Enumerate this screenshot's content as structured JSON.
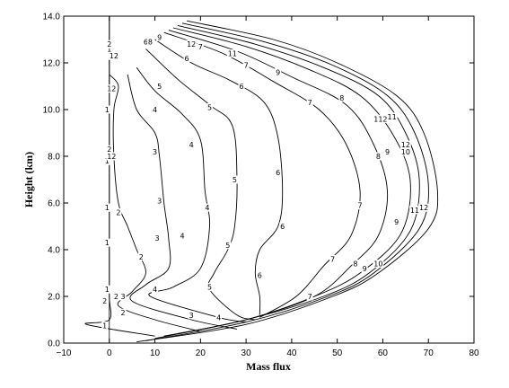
{
  "chart_data": {
    "type": "line",
    "title": "",
    "xlabel": "Mass flux",
    "ylabel": "Height (km)",
    "xlim": [
      -10,
      80
    ],
    "ylim": [
      0,
      14
    ],
    "x_ticks": [
      -10,
      0,
      10,
      20,
      30,
      40,
      50,
      60,
      70,
      80
    ],
    "x_tick_labels": [
      "−10",
      "0",
      "10",
      "20",
      "30",
      "40",
      "50",
      "60",
      "70",
      "80"
    ],
    "y_ticks": [
      0,
      2,
      4,
      6,
      8,
      10,
      12,
      14
    ],
    "y_tick_labels": [
      "0.0",
      "2.0",
      "4.0",
      "6.0",
      "8.0",
      "10.0",
      "12.0",
      "14.0"
    ],
    "grid": false,
    "legend": "none",
    "line_color": "#000000",
    "series": [
      {
        "name": "1",
        "points": [
          [
            0,
            14
          ],
          [
            0,
            12
          ],
          [
            0,
            10
          ],
          [
            0,
            8
          ],
          [
            0,
            6
          ],
          [
            0,
            4
          ],
          [
            0,
            2
          ],
          [
            0,
            1.0
          ],
          [
            -5,
            0.8
          ],
          [
            10,
            0.3
          ]
        ]
      },
      {
        "name": "2",
        "points": [
          [
            0,
            11.5
          ],
          [
            2,
            11
          ],
          [
            1,
            10
          ],
          [
            1,
            8
          ],
          [
            2,
            6
          ],
          [
            4,
            5
          ],
          [
            6,
            4
          ],
          [
            8,
            3
          ],
          [
            5,
            2.2
          ],
          [
            2,
            1.6
          ],
          [
            10,
            1.0
          ],
          [
            20,
            0.5
          ]
        ]
      },
      {
        "name": "3",
        "points": [
          [
            4,
            11.5
          ],
          [
            6,
            10
          ],
          [
            10,
            9
          ],
          [
            11,
            8
          ],
          [
            12,
            6
          ],
          [
            13,
            4.5
          ],
          [
            13,
            3.2
          ],
          [
            8,
            2.5
          ],
          [
            5,
            1.8
          ],
          [
            18,
            1.0
          ],
          [
            28,
            0.6
          ]
        ]
      },
      {
        "name": "4",
        "points": [
          [
            6,
            11.8
          ],
          [
            10,
            10.8
          ],
          [
            16,
            9.8
          ],
          [
            20,
            8.7
          ],
          [
            21,
            6.5
          ],
          [
            22,
            5
          ],
          [
            20,
            3.2
          ],
          [
            14,
            2.4
          ],
          [
            9,
            2.0
          ],
          [
            24,
            1.1
          ],
          [
            30,
            0.9
          ]
        ]
      },
      {
        "name": "5",
        "points": [
          [
            8,
            12.6
          ],
          [
            15,
            11.3
          ],
          [
            22,
            10.2
          ],
          [
            27,
            9.3
          ],
          [
            28,
            7
          ],
          [
            27.5,
            5
          ],
          [
            26,
            4
          ],
          [
            23,
            3
          ],
          [
            22,
            2.3
          ],
          [
            28,
            1.2
          ],
          [
            32,
            1.0
          ]
        ]
      },
      {
        "name": "6",
        "points": [
          [
            10,
            13
          ],
          [
            18,
            12.0
          ],
          [
            27,
            11.2
          ],
          [
            34,
            10.3
          ],
          [
            37,
            8.8
          ],
          [
            38,
            6.5
          ],
          [
            37,
            5
          ],
          [
            33,
            4
          ],
          [
            32,
            3
          ],
          [
            33,
            2
          ],
          [
            33,
            1.2
          ]
        ]
      },
      {
        "name": "7",
        "points": [
          [
            12,
            13.3
          ],
          [
            25,
            12.4
          ],
          [
            36,
            11.2
          ],
          [
            46,
            10
          ],
          [
            52,
            8.5
          ],
          [
            55,
            6.5
          ],
          [
            53,
            4.6
          ],
          [
            47,
            3.3
          ],
          [
            41,
            2.0
          ],
          [
            33,
            1.1
          ]
        ]
      },
      {
        "name": "8",
        "points": [
          [
            13,
            13.4
          ],
          [
            28,
            12.5
          ],
          [
            40,
            11.4
          ],
          [
            52,
            10.2
          ],
          [
            58,
            8.5
          ],
          [
            61,
            6.5
          ],
          [
            59,
            4.6
          ],
          [
            53,
            3.3
          ],
          [
            45,
            2.0
          ],
          [
            30,
            1.0
          ],
          [
            15,
            0.4
          ]
        ]
      },
      {
        "name": "9",
        "points": [
          [
            14,
            13.5
          ],
          [
            30,
            12.7
          ],
          [
            44,
            11.7
          ],
          [
            55,
            10.6
          ],
          [
            62,
            9
          ],
          [
            66,
            7
          ],
          [
            64,
            4.7
          ],
          [
            55,
            3
          ],
          [
            45,
            2.0
          ],
          [
            30,
            1.0
          ],
          [
            12,
            0.3
          ]
        ]
      },
      {
        "name": "10",
        "points": [
          [
            15,
            13.6
          ],
          [
            32,
            12.8
          ],
          [
            47,
            11.8
          ],
          [
            59,
            10.6
          ],
          [
            65,
            9
          ],
          [
            68,
            7
          ],
          [
            66,
            4.8
          ],
          [
            57,
            3
          ],
          [
            47,
            2.0
          ],
          [
            30,
            1.0
          ],
          [
            10,
            0.2
          ]
        ]
      },
      {
        "name": "11",
        "points": [
          [
            16,
            13.7
          ],
          [
            34,
            12.9
          ],
          [
            49,
            11.9
          ],
          [
            61,
            10.6
          ],
          [
            67,
            9
          ],
          [
            70,
            6.8
          ],
          [
            68,
            4.9
          ],
          [
            58,
            3
          ],
          [
            48,
            2.0
          ],
          [
            30,
            0.9
          ],
          [
            8,
            0.1
          ]
        ]
      },
      {
        "name": "12",
        "points": [
          [
            17,
            13.8
          ],
          [
            36,
            13.0
          ],
          [
            50,
            12.0
          ],
          [
            63,
            10.6
          ],
          [
            69,
            9
          ],
          [
            72,
            6.5
          ],
          [
            70,
            4.9
          ],
          [
            59,
            3
          ],
          [
            49,
            2.0
          ],
          [
            30,
            0.8
          ],
          [
            6,
            0.05
          ]
        ]
      }
    ],
    "contour_labels": [
      {
        "text": "1",
        "x": -0.5,
        "y": 2.3
      },
      {
        "text": "1",
        "x": -0.5,
        "y": 4.3
      },
      {
        "text": "1",
        "x": -0.5,
        "y": 5.8
      },
      {
        "text": "1",
        "x": -0.5,
        "y": 7.8
      },
      {
        "text": "1",
        "x": -0.5,
        "y": 10.0
      },
      {
        "text": "1",
        "x": 0,
        "y": 12.6
      },
      {
        "text": "1",
        "x": -1,
        "y": 0.75
      },
      {
        "text": "2",
        "x": 1.5,
        "y": 2.0
      },
      {
        "text": "2",
        "x": 7,
        "y": 3.7
      },
      {
        "text": "2",
        "x": 2,
        "y": 5.6
      },
      {
        "text": "2",
        "x": 0,
        "y": 12.8
      },
      {
        "text": "2",
        "x": 0,
        "y": 8.3
      },
      {
        "text": "2",
        "x": -1,
        "y": 1.8
      },
      {
        "text": "2",
        "x": 3,
        "y": 1.3
      },
      {
        "text": "3",
        "x": 3,
        "y": 2.0
      },
      {
        "text": "3",
        "x": 10.5,
        "y": 4.5
      },
      {
        "text": "3",
        "x": 11,
        "y": 6.1
      },
      {
        "text": "3",
        "x": 10,
        "y": 8.2
      },
      {
        "text": "3",
        "x": 18,
        "y": 1.2
      },
      {
        "text": "4",
        "x": 10,
        "y": 2.3
      },
      {
        "text": "4",
        "x": 16,
        "y": 4.6
      },
      {
        "text": "4",
        "x": 21.5,
        "y": 5.8
      },
      {
        "text": "4",
        "x": 18,
        "y": 8.5
      },
      {
        "text": "4",
        "x": 10,
        "y": 10.0
      },
      {
        "text": "4",
        "x": 24,
        "y": 1.1
      },
      {
        "text": "5",
        "x": 22,
        "y": 2.4
      },
      {
        "text": "5",
        "x": 26,
        "y": 4.2
      },
      {
        "text": "5",
        "x": 27.5,
        "y": 7.0
      },
      {
        "text": "5",
        "x": 22,
        "y": 10.1
      },
      {
        "text": "5",
        "x": 11,
        "y": 11.0
      },
      {
        "text": "6",
        "x": 33,
        "y": 2.9
      },
      {
        "text": "6",
        "x": 38,
        "y": 5.0
      },
      {
        "text": "6",
        "x": 37,
        "y": 7.3
      },
      {
        "text": "6",
        "x": 29,
        "y": 11.0
      },
      {
        "text": "6",
        "x": 17,
        "y": 12.2
      },
      {
        "text": "6",
        "x": 8,
        "y": 12.9
      },
      {
        "text": "7",
        "x": 44,
        "y": 2.0
      },
      {
        "text": "7",
        "x": 49,
        "y": 3.6
      },
      {
        "text": "7",
        "x": 55,
        "y": 5.9
      },
      {
        "text": "7",
        "x": 44,
        "y": 10.3
      },
      {
        "text": "7",
        "x": 30,
        "y": 11.9
      },
      {
        "text": "7",
        "x": 20,
        "y": 12.7
      },
      {
        "text": "8",
        "x": 54,
        "y": 3.4
      },
      {
        "text": "8",
        "x": 59,
        "y": 8.0
      },
      {
        "text": "8",
        "x": 51,
        "y": 10.5
      },
      {
        "text": "8",
        "x": 9,
        "y": 12.9
      },
      {
        "text": "9",
        "x": 56,
        "y": 3.2
      },
      {
        "text": "9",
        "x": 63,
        "y": 5.2
      },
      {
        "text": "9",
        "x": 61,
        "y": 8.2
      },
      {
        "text": "9",
        "x": 37,
        "y": 11.6
      },
      {
        "text": "9",
        "x": 11,
        "y": 13.1
      },
      {
        "text": "10",
        "x": 59,
        "y": 3.4
      },
      {
        "text": "10",
        "x": 65,
        "y": 8.2
      },
      {
        "text": "10",
        "x": 59,
        "y": 9.6
      },
      {
        "text": "10",
        "x": 18,
        "y": 12.8
      },
      {
        "text": "11",
        "x": 67,
        "y": 5.7
      },
      {
        "text": "11",
        "x": 62,
        "y": 9.7
      },
      {
        "text": "11",
        "x": 27,
        "y": 12.4
      },
      {
        "text": "12",
        "x": 69,
        "y": 5.8
      },
      {
        "text": "12",
        "x": 65,
        "y": 8.5
      },
      {
        "text": "12",
        "x": 60,
        "y": 9.6
      },
      {
        "text": "12",
        "x": 1,
        "y": 12.3
      },
      {
        "text": "12",
        "x": 0.5,
        "y": 10.9
      },
      {
        "text": "12",
        "x": 0.5,
        "y": 8.0
      },
      {
        "text": "12",
        "x": 18,
        "y": 12.8
      }
    ]
  }
}
